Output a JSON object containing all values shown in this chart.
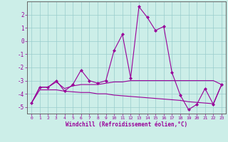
{
  "x": [
    0,
    1,
    2,
    3,
    4,
    5,
    6,
    7,
    8,
    9,
    10,
    11,
    12,
    13,
    14,
    15,
    16,
    17,
    18,
    19,
    20,
    21,
    22,
    23
  ],
  "line1": [
    -4.7,
    -3.5,
    -3.5,
    -3.0,
    -3.8,
    -3.3,
    -2.2,
    -3.0,
    -3.2,
    -3.0,
    -0.7,
    0.5,
    -2.8,
    2.6,
    1.8,
    0.8,
    1.1,
    -2.4,
    -4.1,
    -5.2,
    -4.8,
    -3.6,
    -4.8,
    -3.3
  ],
  "line2": [
    -4.7,
    -3.5,
    -3.5,
    -3.1,
    -3.6,
    -3.4,
    -3.3,
    -3.3,
    -3.3,
    -3.2,
    -3.1,
    -3.1,
    -3.0,
    -3.0,
    -3.0,
    -3.0,
    -3.0,
    -3.0,
    -3.0,
    -3.0,
    -3.0,
    -3.0,
    -3.0,
    -3.3
  ],
  "line3": [
    -4.7,
    -3.7,
    -3.7,
    -3.7,
    -3.8,
    -3.85,
    -3.9,
    -3.9,
    -4.0,
    -4.0,
    -4.1,
    -4.15,
    -4.2,
    -4.25,
    -4.3,
    -4.35,
    -4.4,
    -4.45,
    -4.5,
    -4.6,
    -4.65,
    -4.7,
    -4.75,
    -3.3
  ],
  "color": "#990099",
  "bg_color": "#cceee8",
  "grid_color": "#99cccc",
  "ylim": [
    -5.5,
    3.0
  ],
  "xlim": [
    -0.5,
    23.5
  ],
  "yticks": [
    -5,
    -4,
    -3,
    -2,
    -1,
    0,
    1,
    2
  ],
  "xticks": [
    0,
    1,
    2,
    3,
    4,
    5,
    6,
    7,
    8,
    9,
    10,
    11,
    12,
    13,
    14,
    15,
    16,
    17,
    18,
    19,
    20,
    21,
    22,
    23
  ],
  "xlabel": "Windchill (Refroidissement éolien,°C)",
  "marker": "D",
  "markersize": 2.0,
  "linewidth": 0.8
}
